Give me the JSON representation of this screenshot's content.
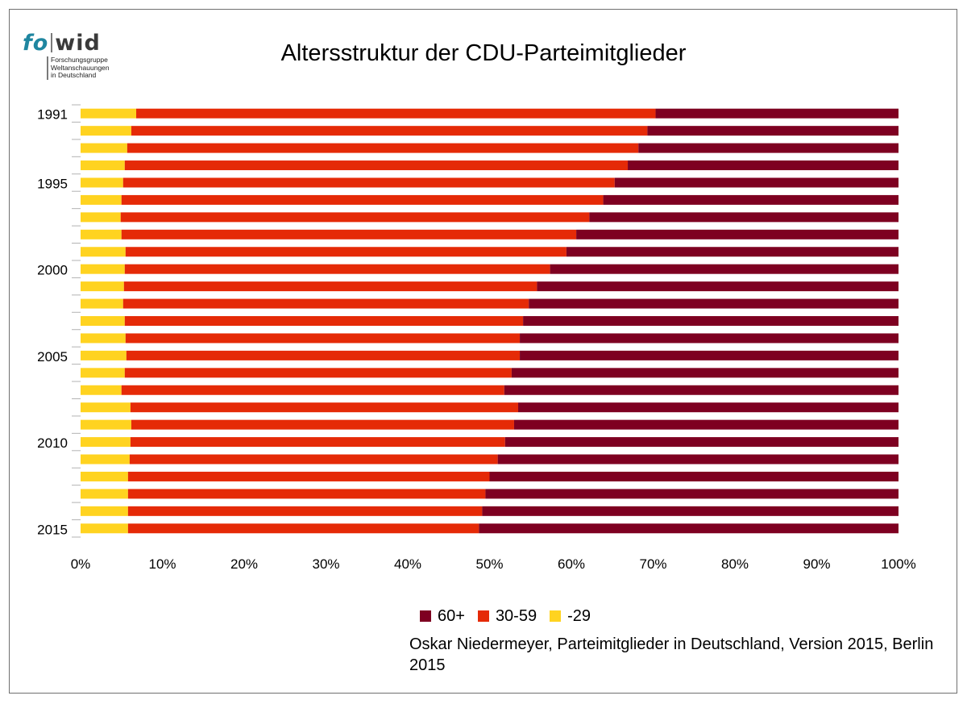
{
  "logo": {
    "brand_fo": "fo",
    "brand_wid": "wid",
    "line1": "Forschungsgruppe",
    "line2": "Weltanschauungen",
    "line3": "in Deutschland",
    "brand_color": "#1f86a0"
  },
  "source": "Oskar Niedermeyer, Parteimitglieder in Deutschland, Version 2015, Berlin 2015",
  "chart_data": {
    "type": "bar",
    "orientation": "horizontal",
    "stacked": true,
    "normalized": "percent",
    "title": "Altersstruktur der CDU-Parteimitglieder",
    "categories": [
      "1991",
      "1992",
      "1993",
      "1994",
      "1995",
      "1996",
      "1997",
      "1998",
      "1999",
      "2000",
      "2001",
      "2002",
      "2003",
      "2004",
      "2005",
      "2006",
      "2007",
      "2008",
      "2009",
      "2010",
      "2011",
      "2012",
      "2013",
      "2014",
      "2015"
    ],
    "category_labels": [
      "1991",
      "",
      "",
      "",
      "1995",
      "",
      "",
      "",
      "",
      "2000",
      "",
      "",
      "",
      "",
      "2005",
      "",
      "",
      "",
      "",
      "2010",
      "",
      "",
      "",
      "",
      "2015"
    ],
    "x_ticks": [
      "0%",
      "10%",
      "20%",
      "30%",
      "40%",
      "50%",
      "60%",
      "70%",
      "80%",
      "90%",
      "100%"
    ],
    "xlim": [
      0,
      100
    ],
    "grid": false,
    "legend_position": "bottom",
    "series": [
      {
        "name": "-29",
        "color": "#ffd320",
        "values": [
          6.8,
          6.2,
          5.7,
          5.4,
          5.2,
          5.0,
          4.9,
          5.0,
          5.5,
          5.4,
          5.3,
          5.2,
          5.4,
          5.5,
          5.6,
          5.4,
          5.0,
          6.1,
          6.2,
          6.1,
          6.0,
          5.8,
          5.8,
          5.8,
          5.8
        ]
      },
      {
        "name": "30-59",
        "color": "#e52a07",
        "values": [
          63.5,
          63.1,
          62.5,
          61.5,
          60.1,
          58.9,
          57.3,
          55.6,
          53.9,
          52.0,
          50.5,
          49.6,
          48.7,
          48.2,
          48.1,
          47.3,
          46.8,
          47.4,
          46.8,
          45.8,
          45.0,
          44.2,
          43.7,
          43.3,
          42.9
        ]
      },
      {
        "name": "60+",
        "color": "#7e0021",
        "values": [
          29.7,
          30.7,
          31.8,
          33.1,
          34.7,
          36.1,
          37.8,
          39.4,
          40.6,
          42.6,
          44.2,
          45.2,
          45.9,
          46.3,
          46.3,
          47.3,
          48.2,
          46.5,
          47.0,
          48.1,
          49.0,
          50.0,
          50.5,
          50.9,
          51.3
        ]
      }
    ],
    "legend_order": [
      "60+",
      "30-59",
      "-29"
    ]
  }
}
